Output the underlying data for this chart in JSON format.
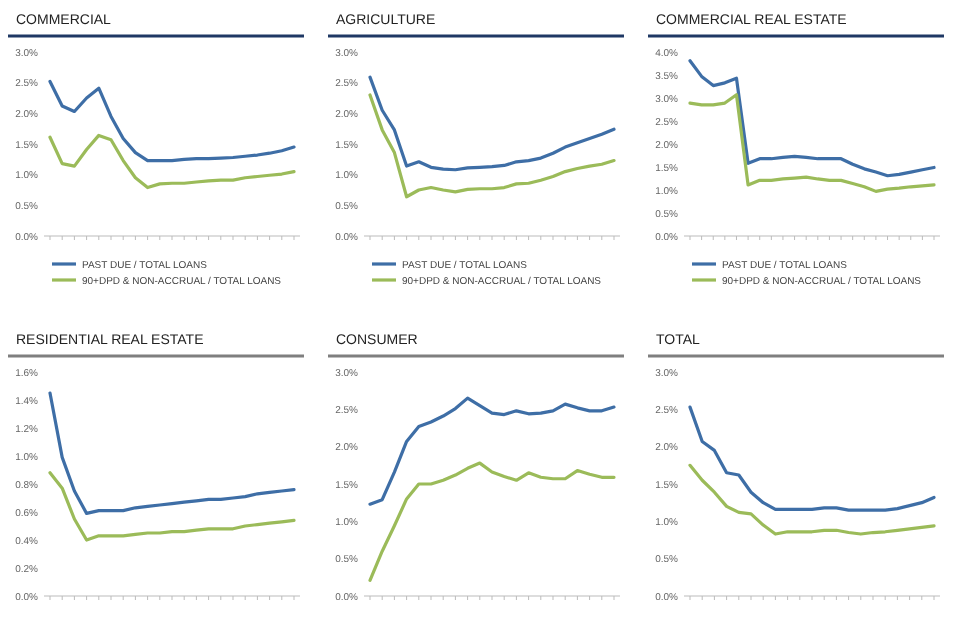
{
  "chart_data": [
    {
      "type": "line",
      "title": "COMMERCIAL",
      "categories": [
        null,
        null,
        null,
        null,
        null,
        null,
        null,
        null,
        null,
        null,
        null,
        null,
        null,
        null,
        null,
        null,
        null,
        null,
        null,
        null,
        null
      ],
      "series": [
        {
          "name": "PAST DUE / TOTAL LOANS",
          "color": "#3e6ea6",
          "values": [
            2.52,
            2.12,
            2.03,
            2.25,
            2.41,
            1.95,
            1.59,
            1.36,
            1.23,
            1.23,
            1.23,
            1.25,
            1.26,
            1.26,
            1.27,
            1.28,
            1.3,
            1.32,
            1.35,
            1.39,
            1.45
          ]
        },
        {
          "name": "90+DPD & NON-ACCRUAL / TOTAL LOANS",
          "color": "#9bbb59",
          "values": [
            1.61,
            1.18,
            1.14,
            1.41,
            1.64,
            1.57,
            1.23,
            0.95,
            0.79,
            0.85,
            0.86,
            0.86,
            0.88,
            0.9,
            0.91,
            0.91,
            0.95,
            0.97,
            0.99,
            1.01,
            1.05
          ]
        }
      ],
      "ylim": [
        0,
        3
      ],
      "yticks": [
        {
          "value": 0,
          "label": "0.0%"
        },
        {
          "value": 0.5,
          "label": "0.5%"
        },
        {
          "value": 1,
          "label": "1.0%"
        },
        {
          "value": 1.5,
          "label": "1.5%"
        },
        {
          "value": 2,
          "label": "2.0%"
        },
        {
          "value": 2.5,
          "label": "2.5%"
        },
        {
          "value": 3,
          "label": "3.0%"
        }
      ],
      "grid": false,
      "legend": "bottom"
    },
    {
      "type": "line",
      "title": "AGRICULTURE",
      "categories": [
        null,
        null,
        null,
        null,
        null,
        null,
        null,
        null,
        null,
        null,
        null,
        null,
        null,
        null,
        null,
        null,
        null,
        null,
        null,
        null,
        null
      ],
      "series": [
        {
          "name": "PAST DUE / TOTAL LOANS",
          "color": "#3e6ea6",
          "values": [
            2.59,
            2.05,
            1.73,
            1.14,
            1.21,
            1.12,
            1.09,
            1.08,
            1.11,
            1.12,
            1.13,
            1.15,
            1.21,
            1.23,
            1.27,
            1.35,
            1.45,
            1.52,
            1.59,
            1.66,
            1.74
          ]
        },
        {
          "name": "90+DPD & NON-ACCRUAL / TOTAL LOANS",
          "color": "#9bbb59",
          "values": [
            2.3,
            1.73,
            1.36,
            0.64,
            0.75,
            0.79,
            0.75,
            0.72,
            0.76,
            0.77,
            0.77,
            0.79,
            0.85,
            0.86,
            0.91,
            0.97,
            1.05,
            1.1,
            1.14,
            1.17,
            1.23
          ]
        }
      ],
      "ylim": [
        0,
        3
      ],
      "yticks": [
        {
          "value": 0,
          "label": "0.0%"
        },
        {
          "value": 0.5,
          "label": "0.5%"
        },
        {
          "value": 1,
          "label": "1.0%"
        },
        {
          "value": 1.5,
          "label": "1.5%"
        },
        {
          "value": 2,
          "label": "2.0%"
        },
        {
          "value": 2.5,
          "label": "2.5%"
        },
        {
          "value": 3,
          "label": "3.0%"
        }
      ],
      "grid": false,
      "legend": "bottom"
    },
    {
      "type": "line",
      "title": "COMMERCIAL REAL ESTATE",
      "categories": [
        null,
        null,
        null,
        null,
        null,
        null,
        null,
        null,
        null,
        null,
        null,
        null,
        null,
        null,
        null,
        null,
        null,
        null,
        null,
        null,
        null,
        null
      ],
      "series": [
        {
          "name": "PAST DUE / TOTAL LOANS",
          "color": "#3e6ea6",
          "values": [
            3.81,
            3.47,
            3.27,
            3.33,
            3.43,
            1.58,
            1.68,
            1.68,
            1.71,
            1.73,
            1.71,
            1.68,
            1.68,
            1.68,
            1.56,
            1.46,
            1.39,
            1.31,
            1.34,
            1.39,
            1.44,
            1.49
          ]
        },
        {
          "name": "90+DPD & NON-ACCRUAL / TOTAL LOANS",
          "color": "#9bbb59",
          "values": [
            2.89,
            2.85,
            2.85,
            2.89,
            3.07,
            1.11,
            1.21,
            1.21,
            1.24,
            1.26,
            1.28,
            1.24,
            1.21,
            1.21,
            1.14,
            1.07,
            0.97,
            1.02,
            1.04,
            1.07,
            1.09,
            1.11
          ]
        }
      ],
      "ylim": [
        0,
        4
      ],
      "yticks": [
        {
          "value": 0,
          "label": "0.0%"
        },
        {
          "value": 0.5,
          "label": "0.5%"
        },
        {
          "value": 1,
          "label": "1.0%"
        },
        {
          "value": 1.5,
          "label": "1.5%"
        },
        {
          "value": 2,
          "label": "2.0%"
        },
        {
          "value": 2.5,
          "label": "2.5%"
        },
        {
          "value": 3,
          "label": "3.0%"
        },
        {
          "value": 3.5,
          "label": "3.5%"
        },
        {
          "value": 4,
          "label": "4.0%"
        }
      ],
      "grid": false,
      "legend": "bottom"
    },
    {
      "type": "line",
      "title": "RESIDENTIAL REAL ESTATE",
      "categories": [
        null,
        null,
        null,
        null,
        null,
        null,
        null,
        null,
        null,
        null,
        null,
        null,
        null,
        null,
        null,
        null,
        null,
        null,
        null,
        null,
        null
      ],
      "series": [
        {
          "color": "#3e6ea6",
          "values": [
            1.45,
            0.99,
            0.75,
            0.59,
            0.61,
            0.61,
            0.61,
            0.63,
            0.64,
            0.65,
            0.66,
            0.67,
            0.68,
            0.69,
            0.69,
            0.7,
            0.71,
            0.73,
            0.74,
            0.75,
            0.76
          ]
        },
        {
          "color": "#9bbb59",
          "values": [
            0.88,
            0.77,
            0.55,
            0.4,
            0.43,
            0.43,
            0.43,
            0.44,
            0.45,
            0.45,
            0.46,
            0.46,
            0.47,
            0.48,
            0.48,
            0.48,
            0.5,
            0.51,
            0.52,
            0.53,
            0.54
          ]
        }
      ],
      "ylim": [
        0,
        1.6
      ],
      "yticks": [
        {
          "value": 0,
          "label": "0.0%"
        },
        {
          "value": 0.2,
          "label": "0.2%"
        },
        {
          "value": 0.4,
          "label": "0.4%"
        },
        {
          "value": 0.6,
          "label": "0.6%"
        },
        {
          "value": 0.8,
          "label": "0.8%"
        },
        {
          "value": 1,
          "label": "1.0%"
        },
        {
          "value": 1.2,
          "label": "1.2%"
        },
        {
          "value": 1.4,
          "label": "1.4%"
        },
        {
          "value": 1.6,
          "label": "1.6%"
        }
      ],
      "grid": false
    },
    {
      "type": "line",
      "title": "CONSUMER",
      "categories": [
        null,
        null,
        null,
        null,
        null,
        null,
        null,
        null,
        null,
        null,
        null,
        null,
        null,
        null,
        null,
        null,
        null,
        null,
        null,
        null,
        null
      ],
      "series": [
        {
          "color": "#3e6ea6",
          "values": [
            1.23,
            1.29,
            1.66,
            2.07,
            2.27,
            2.33,
            2.41,
            2.51,
            2.65,
            2.55,
            2.45,
            2.43,
            2.48,
            2.44,
            2.45,
            2.48,
            2.57,
            2.52,
            2.48,
            2.48,
            2.53
          ]
        },
        {
          "color": "#9bbb59",
          "values": [
            0.21,
            0.6,
            0.94,
            1.3,
            1.5,
            1.5,
            1.55,
            1.62,
            1.71,
            1.78,
            1.66,
            1.6,
            1.55,
            1.65,
            1.59,
            1.57,
            1.57,
            1.68,
            1.63,
            1.59,
            1.59
          ]
        }
      ],
      "ylim": [
        0,
        3
      ],
      "yticks": [
        {
          "value": 0,
          "label": "0.0%"
        },
        {
          "value": 0.5,
          "label": "0.5%"
        },
        {
          "value": 1,
          "label": "1.0%"
        },
        {
          "value": 1.5,
          "label": "1.5%"
        },
        {
          "value": 2,
          "label": "2.0%"
        },
        {
          "value": 2.5,
          "label": "2.5%"
        },
        {
          "value": 3,
          "label": "3.0%"
        }
      ],
      "grid": false
    },
    {
      "type": "line",
      "title": "TOTAL",
      "categories": [
        null,
        null,
        null,
        null,
        null,
        null,
        null,
        null,
        null,
        null,
        null,
        null,
        null,
        null,
        null,
        null,
        null,
        null,
        null,
        null,
        null
      ],
      "series": [
        {
          "color": "#3e6ea6",
          "values": [
            2.53,
            2.07,
            1.95,
            1.65,
            1.62,
            1.39,
            1.25,
            1.16,
            1.16,
            1.16,
            1.16,
            1.18,
            1.18,
            1.15,
            1.15,
            1.15,
            1.15,
            1.17,
            1.21,
            1.25,
            1.32
          ]
        },
        {
          "color": "#9bbb59",
          "values": [
            1.75,
            1.55,
            1.39,
            1.2,
            1.12,
            1.1,
            0.95,
            0.83,
            0.86,
            0.86,
            0.86,
            0.88,
            0.88,
            0.85,
            0.83,
            0.85,
            0.86,
            0.88,
            0.9,
            0.92,
            0.94
          ]
        }
      ],
      "ylim": [
        0,
        3
      ],
      "yticks": [
        {
          "value": 0,
          "label": "0.0%"
        },
        {
          "value": 0.5,
          "label": "0.5%"
        },
        {
          "value": 1,
          "label": "1.0%"
        },
        {
          "value": 1.5,
          "label": "1.5%"
        },
        {
          "value": 2,
          "label": "2.0%"
        },
        {
          "value": 2.5,
          "label": "2.5%"
        },
        {
          "value": 3,
          "label": "3.0%"
        }
      ],
      "grid": false
    }
  ]
}
